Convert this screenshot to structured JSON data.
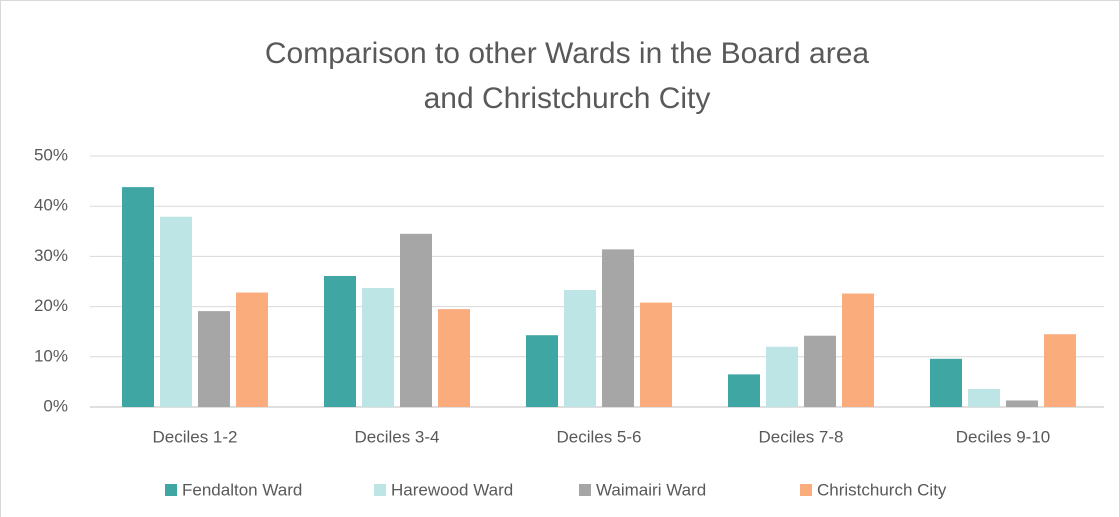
{
  "chart_data": {
    "type": "bar",
    "title": [
      "Comparison to other Wards in the Board area",
      "and Christchurch City"
    ],
    "categories": [
      "Deciles 1-2",
      "Deciles 3-4",
      "Deciles 5-6",
      "Deciles 7-8",
      "Deciles 9-10"
    ],
    "series": [
      {
        "name": "Fendalton Ward",
        "color": "#3fa6a3",
        "values": [
          43.8,
          26.1,
          14.3,
          6.5,
          9.6
        ]
      },
      {
        "name": "Harewood Ward",
        "color": "#bde5e6",
        "values": [
          37.9,
          23.7,
          23.3,
          12.0,
          3.6
        ]
      },
      {
        "name": "Waimairi Ward",
        "color": "#a6a6a6",
        "values": [
          19.1,
          34.5,
          31.4,
          14.2,
          1.3
        ]
      },
      {
        "name": "Christchurch City",
        "color": "#fbac7d",
        "values": [
          22.8,
          19.5,
          20.8,
          22.6,
          14.5
        ]
      }
    ],
    "ylim": [
      0,
      50
    ],
    "yticks": [
      {
        "value": 0,
        "label": "0%"
      },
      {
        "value": 10,
        "label": "10%"
      },
      {
        "value": 20,
        "label": "20%"
      },
      {
        "value": 30,
        "label": "30%"
      },
      {
        "value": 40,
        "label": "40%"
      },
      {
        "value": 50,
        "label": "50%"
      }
    ],
    "grid": true,
    "legend": "bottom"
  }
}
